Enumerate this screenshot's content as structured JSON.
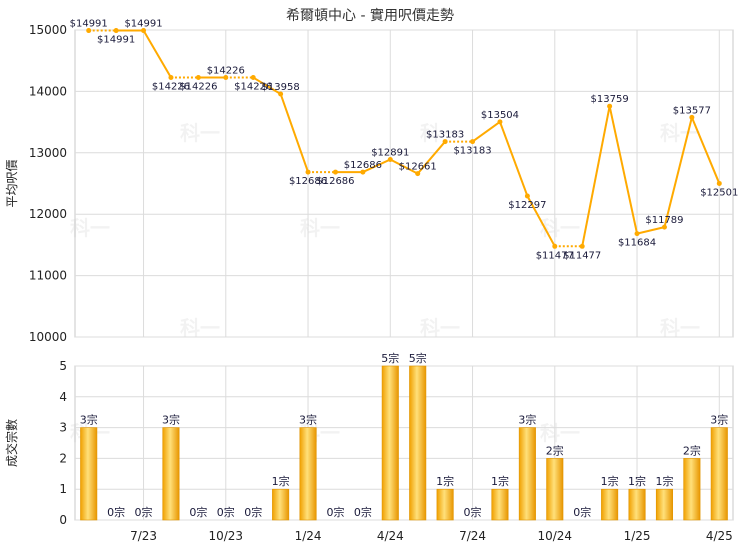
{
  "chart_data": [
    {
      "type": "line",
      "title": "希爾頓中心 - 實用呎價走勢",
      "ylabel": "平均呎價",
      "ylim": [
        10000,
        15000
      ],
      "y_ticks": [
        "10000",
        "11000",
        "12000",
        "13000",
        "14000",
        "15000"
      ],
      "grid": true,
      "line_color": "#ffaa00",
      "series": [
        {
          "values": [
            14991,
            14991,
            14991,
            14226,
            14226,
            14226,
            14226,
            13958,
            12686,
            12686,
            12686,
            12891,
            12661,
            13183,
            13183,
            13504,
            12297,
            11477,
            11477,
            13759,
            11684,
            11789,
            13577,
            12501
          ],
          "labels": [
            "$14991",
            "$14991",
            "$14991",
            "$14226",
            "$14226",
            "$14226",
            "$14226",
            "$13958",
            "$12686",
            "$12686",
            "$12686",
            "$12891",
            "$12661",
            "$13183",
            "$13183",
            "$13504",
            "$12297",
            "$11477",
            "$11477",
            "$13759",
            "$11684",
            "$11789",
            "$13577",
            "$12501"
          ],
          "estimated": [
            false,
            true,
            false,
            false,
            true,
            false,
            true,
            false,
            false,
            true,
            false,
            false,
            false,
            false,
            true,
            false,
            false,
            false,
            true,
            false,
            false,
            false,
            false,
            false
          ]
        }
      ]
    },
    {
      "type": "bar",
      "ylabel": "成交宗數",
      "ylim": [
        0,
        5
      ],
      "y_ticks": [
        "0",
        "1",
        "2",
        "3",
        "4",
        "5"
      ],
      "x_ticks": [
        {
          "index": 2,
          "label": "7/23"
        },
        {
          "index": 5,
          "label": "10/23"
        },
        {
          "index": 8,
          "label": "1/24"
        },
        {
          "index": 11,
          "label": "4/24"
        },
        {
          "index": 14,
          "label": "7/24"
        },
        {
          "index": 17,
          "label": "10/24"
        },
        {
          "index": 20,
          "label": "1/25"
        },
        {
          "index": 23,
          "label": "4/25"
        }
      ],
      "bar_color": "#ffaa00",
      "values": [
        3,
        0,
        0,
        3,
        0,
        0,
        0,
        1,
        3,
        0,
        0,
        5,
        5,
        1,
        0,
        1,
        3,
        2,
        0,
        1,
        1,
        1,
        2,
        3
      ],
      "labels": [
        "3宗",
        "0宗",
        "0宗",
        "3宗",
        "0宗",
        "0宗",
        "0宗",
        "1宗",
        "3宗",
        "0宗",
        "0宗",
        "5宗",
        "5宗",
        "1宗",
        "0宗",
        "1宗",
        "3宗",
        "2宗",
        "0宗",
        "1宗",
        "1宗",
        "1宗",
        "2宗",
        "3宗"
      ]
    }
  ],
  "watermark": "科一"
}
